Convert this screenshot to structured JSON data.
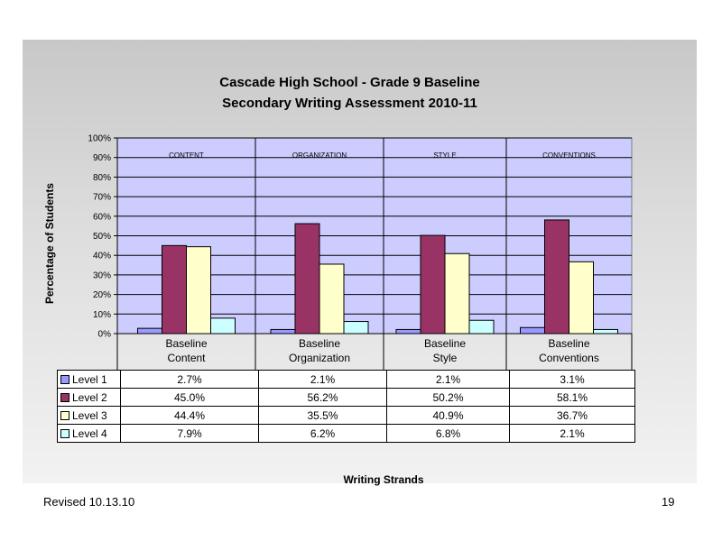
{
  "slide": {
    "footer_left": "Revised  10.13.10",
    "page_number": "19"
  },
  "colors": {
    "plot_background": "#ccccff",
    "level1": "#9999ff",
    "level2": "#993366",
    "level3": "#ffffcc",
    "level4": "#ccffff"
  },
  "chart_data": {
    "type": "bar",
    "title": "Cascade High School - Grade 9 Baseline",
    "subtitle": "Secondary Writing Assessment 2010-11",
    "xlabel": "Writing Strands",
    "ylabel": "Percentage of Students",
    "ylim": [
      0,
      100
    ],
    "yticks": [
      "0%",
      "10%",
      "20%",
      "30%",
      "40%",
      "50%",
      "60%",
      "70%",
      "80%",
      "90%",
      "100%"
    ],
    "grid": true,
    "legend": "data-table",
    "categories": [
      "Baseline Content",
      "Baseline Organization",
      "Baseline Style",
      "Baseline Conventions"
    ],
    "category_lines": [
      [
        "Baseline",
        "Content"
      ],
      [
        "Baseline",
        "Organization"
      ],
      [
        "Baseline",
        "Style"
      ],
      [
        "Baseline",
        "Conventions"
      ]
    ],
    "section_labels": [
      "CONTENT",
      "ORGANIZATION",
      "STYLE",
      "CONVENTIONS"
    ],
    "series": [
      {
        "name": "Level 1",
        "values": [
          2.7,
          2.1,
          2.1,
          3.1
        ],
        "labels": [
          "2.7%",
          "2.1%",
          "2.1%",
          "3.1%"
        ]
      },
      {
        "name": "Level 2",
        "values": [
          45.0,
          56.2,
          50.2,
          58.1
        ],
        "labels": [
          "45.0%",
          "56.2%",
          "50.2%",
          "58.1%"
        ]
      },
      {
        "name": "Level 3",
        "values": [
          44.4,
          35.5,
          40.9,
          36.7
        ],
        "labels": [
          "44.4%",
          "35.5%",
          "40.9%",
          "36.7%"
        ]
      },
      {
        "name": "Level 4",
        "values": [
          7.9,
          6.2,
          6.8,
          2.1
        ],
        "labels": [
          "7.9%",
          "6.2%",
          "6.8%",
          "2.1%"
        ]
      }
    ]
  }
}
